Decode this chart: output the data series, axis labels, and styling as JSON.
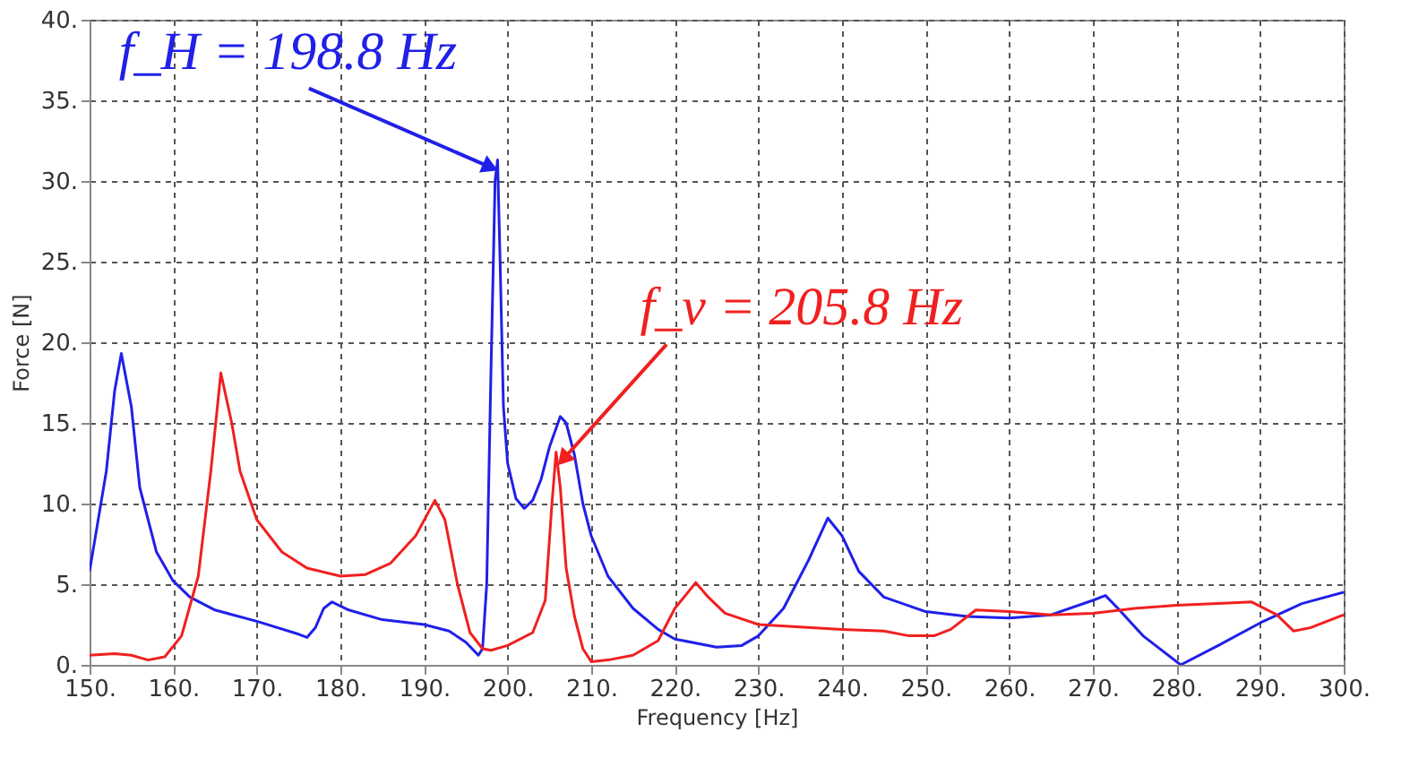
{
  "chart_data": {
    "type": "line",
    "xlabel": "Frequency [Hz]",
    "ylabel": "Force [N]",
    "xlim": [
      150,
      300
    ],
    "ylim": [
      0,
      40
    ],
    "xticks": [
      {
        "value": 150,
        "label": "150."
      },
      {
        "value": 160,
        "label": "160."
      },
      {
        "value": 170,
        "label": "170."
      },
      {
        "value": 180,
        "label": "180."
      },
      {
        "value": 190,
        "label": "190."
      },
      {
        "value": 200,
        "label": "200."
      },
      {
        "value": 210,
        "label": "210."
      },
      {
        "value": 220,
        "label": "220."
      },
      {
        "value": 230,
        "label": "230."
      },
      {
        "value": 240,
        "label": "240."
      },
      {
        "value": 250,
        "label": "250."
      },
      {
        "value": 260,
        "label": "260."
      },
      {
        "value": 270,
        "label": "270."
      },
      {
        "value": 280,
        "label": "280."
      },
      {
        "value": 290,
        "label": "290."
      },
      {
        "value": 300,
        "label": "300."
      }
    ],
    "yticks": [
      {
        "value": 0,
        "label": "0."
      },
      {
        "value": 5,
        "label": "5."
      },
      {
        "value": 10,
        "label": "10."
      },
      {
        "value": 15,
        "label": "15."
      },
      {
        "value": 20,
        "label": "20."
      },
      {
        "value": 25,
        "label": "25."
      },
      {
        "value": 30,
        "label": "30."
      },
      {
        "value": 35,
        "label": "35."
      },
      {
        "value": 40,
        "label": "40."
      }
    ],
    "grid": true,
    "line_style": "solid",
    "marker": "none",
    "series": [
      {
        "color": "#2020e8",
        "x": [
          150,
          152,
          153,
          153.8,
          155,
          156,
          158,
          160,
          162,
          165,
          170,
          175,
          176,
          177,
          178,
          179,
          181,
          185,
          190,
          193,
          195,
          196.5,
          197,
          197.5,
          198,
          198.5,
          198.8,
          199.1,
          199.5,
          200,
          201,
          202,
          203,
          204,
          205,
          206.3,
          207,
          208,
          209,
          210,
          212,
          215,
          218,
          220,
          225,
          228,
          230,
          233,
          236,
          238.3,
          240,
          242,
          245,
          250,
          255,
          260,
          265,
          270,
          271.5,
          273,
          276,
          280.5,
          285,
          290,
          295,
          300
        ],
        "values": [
          5.8,
          12,
          17,
          19.3,
          16,
          11,
          7,
          5.2,
          4.2,
          3.4,
          2.7,
          1.9,
          1.7,
          2.3,
          3.5,
          3.9,
          3.4,
          2.8,
          2.5,
          2.1,
          1.4,
          0.6,
          1.0,
          5,
          18,
          30,
          31.3,
          25,
          16,
          12.5,
          10.3,
          9.7,
          10.2,
          11.5,
          13.5,
          15.4,
          15,
          13,
          10,
          8,
          5.5,
          3.5,
          2.2,
          1.6,
          1.1,
          1.2,
          1.8,
          3.5,
          6.5,
          9.1,
          8,
          5.8,
          4.2,
          3.3,
          3.0,
          2.9,
          3.1,
          4.0,
          4.3,
          3.5,
          1.8,
          0.0,
          1.2,
          2.6,
          3.8,
          4.5
        ]
      },
      {
        "color": "#f02020",
        "x": [
          150,
          153,
          155,
          157,
          159,
          161,
          163,
          164.5,
          165.7,
          167,
          168,
          170,
          173,
          176,
          180,
          183,
          186,
          189,
          191.3,
          192.5,
          194,
          195.5,
          197,
          198,
          200,
          203,
          204.5,
          205.3,
          205.8,
          206.3,
          207,
          208,
          209,
          210,
          212,
          215,
          218,
          220,
          222.5,
          224,
          226,
          230,
          240,
          245,
          248,
          251,
          253,
          256,
          260,
          265,
          270,
          275,
          280,
          285,
          289,
          292,
          294,
          296,
          300
        ],
        "values": [
          0.6,
          0.7,
          0.6,
          0.3,
          0.5,
          1.8,
          5.5,
          12,
          18.1,
          15,
          12,
          9,
          7,
          6,
          5.5,
          5.6,
          6.3,
          8,
          10.2,
          9,
          5,
          2,
          1.0,
          0.9,
          1.2,
          2.0,
          4,
          10,
          13.2,
          11,
          6,
          3,
          1,
          0.2,
          0.3,
          0.6,
          1.5,
          3.5,
          5.1,
          4.2,
          3.2,
          2.5,
          2.2,
          2.1,
          1.8,
          1.8,
          2.2,
          3.4,
          3.3,
          3.1,
          3.2,
          3.5,
          3.7,
          3.8,
          3.9,
          3.1,
          2.1,
          2.3,
          3.1
        ]
      }
    ],
    "annotations": [
      {
        "text": "f_H = 198.8 Hz",
        "x": 198.8,
        "y": 31.3
      },
      {
        "text": "f_v = 205.8 Hz",
        "x": 205.8,
        "y": 13.2
      }
    ]
  }
}
